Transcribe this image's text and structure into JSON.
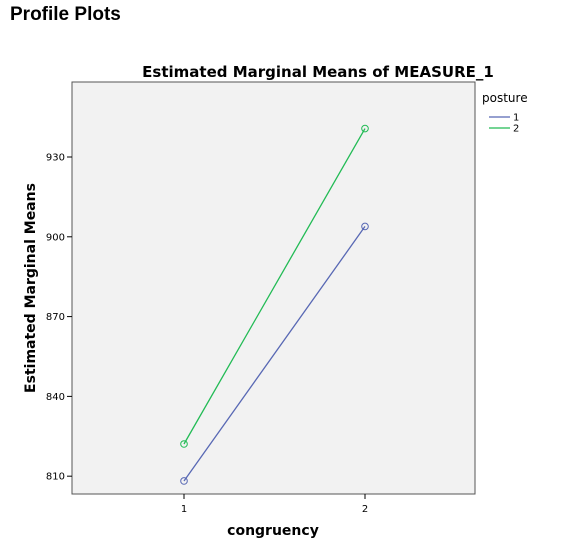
{
  "page": {
    "heading": "Profile Plots"
  },
  "chart_data": {
    "type": "line",
    "title": "Estimated Marginal Means of MEASURE_1",
    "xlabel": "congruency",
    "ylabel": "Estimated Marginal Means",
    "categories": [
      "1",
      "2"
    ],
    "yticks": [
      810,
      840,
      870,
      900,
      930
    ],
    "ylim": [
      803.3,
      958.2
    ],
    "grid": false,
    "legend": {
      "title": "posture",
      "placement": "right",
      "entries": [
        "1",
        "2"
      ]
    },
    "series": [
      {
        "name": "1",
        "values": [
          808.2,
          903.9
        ],
        "color": "#5868b4"
      },
      {
        "name": "2",
        "values": [
          822.1,
          940.7
        ],
        "color": "#22bb55"
      }
    ],
    "colors": {
      "plot_background": "#f2f2f2",
      "frame": "#555555"
    }
  }
}
